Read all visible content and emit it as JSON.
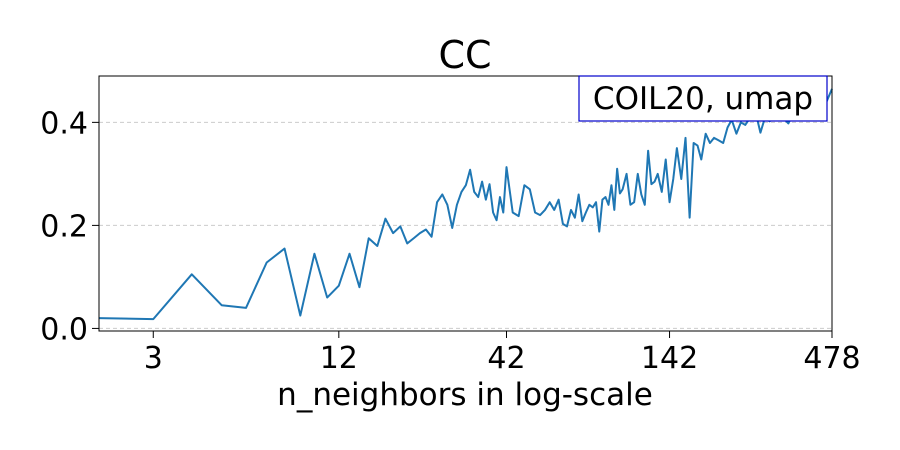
{
  "chart_data": {
    "type": "line",
    "title": "CC",
    "xlabel": "n_neighbors in log-scale",
    "ylabel": "",
    "xscale": "log",
    "xlim": [
      2,
      478
    ],
    "ylim": [
      -0.005,
      0.49
    ],
    "xticks": [
      {
        "value": 3,
        "label": "3"
      },
      {
        "value": 12,
        "label": "12"
      },
      {
        "value": 42,
        "label": "42"
      },
      {
        "value": 142,
        "label": "142"
      },
      {
        "value": 478,
        "label": "478"
      }
    ],
    "yticks": [
      {
        "value": 0.0,
        "label": "0.0"
      },
      {
        "value": 0.2,
        "label": "0.2"
      },
      {
        "value": 0.4,
        "label": "0.4"
      }
    ],
    "grid": {
      "y": true,
      "x": false
    },
    "legend": {
      "text": "COIL20, umap",
      "placement": "top-right"
    },
    "series": [
      {
        "color": "#1f77b4",
        "x": [
          2,
          3,
          4,
          5,
          6,
          7,
          8,
          9,
          10,
          11,
          12,
          13,
          14,
          15,
          16,
          17,
          18,
          19,
          20,
          21,
          22,
          23,
          24,
          25,
          26,
          27,
          28,
          29,
          30,
          31,
          32,
          33,
          34,
          35,
          36,
          37,
          38,
          39,
          40,
          41,
          42,
          44,
          46,
          48,
          50,
          52,
          54,
          56,
          58,
          60,
          62,
          64,
          66,
          68,
          70,
          72,
          74,
          76,
          78,
          80,
          82,
          84,
          86,
          88,
          90,
          92,
          94,
          96,
          98,
          100,
          103,
          106,
          109,
          112,
          115,
          118,
          121,
          124,
          127,
          130,
          134,
          138,
          142,
          146,
          150,
          155,
          160,
          165,
          170,
          175,
          180,
          186,
          192,
          198,
          205,
          212,
          219,
          226,
          234,
          242,
          250,
          260,
          270,
          280,
          290,
          300,
          315,
          330,
          345,
          360,
          378,
          396,
          415,
          435,
          455,
          478
        ],
        "y": [
          0.02,
          0.018,
          0.105,
          0.045,
          0.04,
          0.128,
          0.155,
          0.025,
          0.145,
          0.06,
          0.083,
          0.145,
          0.08,
          0.175,
          0.16,
          0.213,
          0.185,
          0.198,
          0.165,
          0.175,
          0.185,
          0.192,
          0.178,
          0.245,
          0.26,
          0.24,
          0.195,
          0.24,
          0.265,
          0.278,
          0.308,
          0.265,
          0.255,
          0.285,
          0.25,
          0.28,
          0.225,
          0.21,
          0.255,
          0.225,
          0.313,
          0.225,
          0.218,
          0.278,
          0.27,
          0.225,
          0.22,
          0.23,
          0.245,
          0.23,
          0.25,
          0.203,
          0.198,
          0.23,
          0.215,
          0.26,
          0.208,
          0.225,
          0.24,
          0.235,
          0.245,
          0.188,
          0.25,
          0.255,
          0.24,
          0.278,
          0.23,
          0.31,
          0.262,
          0.27,
          0.3,
          0.24,
          0.245,
          0.3,
          0.26,
          0.24,
          0.345,
          0.28,
          0.285,
          0.3,
          0.265,
          0.328,
          0.245,
          0.29,
          0.35,
          0.29,
          0.37,
          0.215,
          0.36,
          0.355,
          0.328,
          0.378,
          0.36,
          0.37,
          0.365,
          0.36,
          0.39,
          0.405,
          0.378,
          0.4,
          0.395,
          0.41,
          0.42,
          0.38,
          0.41,
          0.402,
          0.415,
          0.41,
          0.398,
          0.42,
          0.415,
          0.425,
          0.43,
          0.42,
          0.435,
          0.465
        ]
      }
    ]
  }
}
